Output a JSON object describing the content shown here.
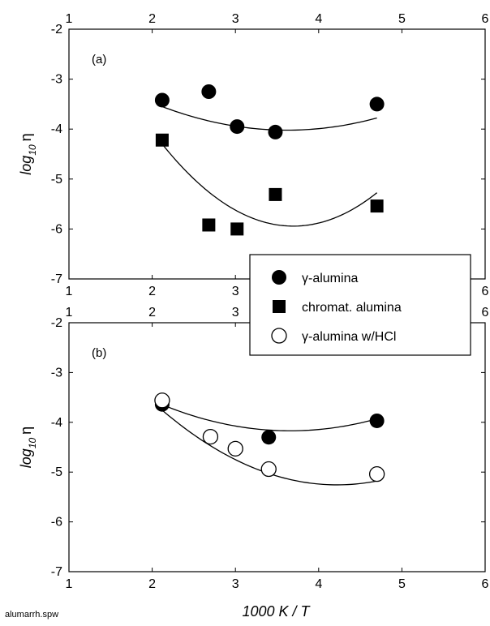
{
  "chart_data": [
    {
      "type": "scatter",
      "panel_label": "(a)",
      "xlabel": "1000 K / T",
      "ylabel": "log10 η",
      "ylabel_main": "log",
      "ylabel_sub": "10",
      "ylabel_sym": "η",
      "xlim": [
        1,
        6
      ],
      "ylim": [
        -7,
        -2
      ],
      "xticks": [
        1,
        2,
        3,
        4,
        5,
        6
      ],
      "yticks": [
        -2,
        -3,
        -4,
        -5,
        -6,
        -7
      ],
      "series": [
        {
          "name": "γ-alumina",
          "marker": "filled-circle",
          "x": [
            2.12,
            2.68,
            3.02,
            3.48,
            4.7
          ],
          "y": [
            -3.42,
            -3.25,
            -3.95,
            -4.06,
            -3.5
          ],
          "fit": {
            "x_from": 2.12,
            "x_to": 4.7,
            "poly": [
              -1.2706,
              -1.5198,
              0.2099
            ]
          }
        },
        {
          "name": "chromat. alumina",
          "marker": "filled-square",
          "x": [
            2.12,
            2.68,
            3.02,
            3.48,
            4.7
          ],
          "y": [
            -4.22,
            -5.92,
            -6.0,
            -5.31,
            -5.54
          ],
          "fit": {
            "x_from": 2.12,
            "x_to": 4.7,
            "poly": [
              3.1018,
              -4.8949,
              0.6623
            ]
          }
        }
      ]
    },
    {
      "type": "scatter",
      "panel_label": "(b)",
      "xlabel": "1000 K / T",
      "ylabel": "log10 η",
      "ylabel_main": "log",
      "ylabel_sub": "10",
      "ylabel_sym": "η",
      "xlim": [
        1,
        6
      ],
      "ylim": [
        -7,
        -2
      ],
      "xticks": [
        1,
        2,
        3,
        4,
        5,
        6
      ],
      "yticks": [
        -2,
        -3,
        -4,
        -5,
        -6,
        -7
      ],
      "series": [
        {
          "name": "γ-alumina",
          "marker": "filled-circle",
          "x": [
            2.12,
            3.4,
            4.7
          ],
          "y": [
            -3.64,
            -4.3,
            -3.97
          ],
          "fit": {
            "x_from": 2.12,
            "x_to": 4.7,
            "poly": [
              -1.2023,
              -1.6232,
              0.2219
            ]
          }
        },
        {
          "name": "γ-alumina w/HCl",
          "marker": "open-circle",
          "x": [
            2.12,
            2.7,
            3.0,
            3.4,
            4.7
          ],
          "y": [
            -3.56,
            -4.29,
            -4.53,
            -4.94,
            -5.04
          ],
          "fit": {
            "x_from": 2.12,
            "x_to": 4.7,
            "poly": [
              0.8,
              -2.87,
              0.34
            ]
          }
        }
      ]
    }
  ],
  "legend": {
    "placement": "center-right",
    "entries": [
      {
        "label": "γ-alumina",
        "marker": "filled-circle"
      },
      {
        "label": "chromat. alumina",
        "marker": "filled-square"
      },
      {
        "label": "γ-alumina w/HCl",
        "marker": "open-circle"
      }
    ]
  },
  "x_axis_label": "1000 K / T",
  "footnote": "alumarrh.spw",
  "colors": {
    "ink": "#000000",
    "background": "#ffffff"
  }
}
